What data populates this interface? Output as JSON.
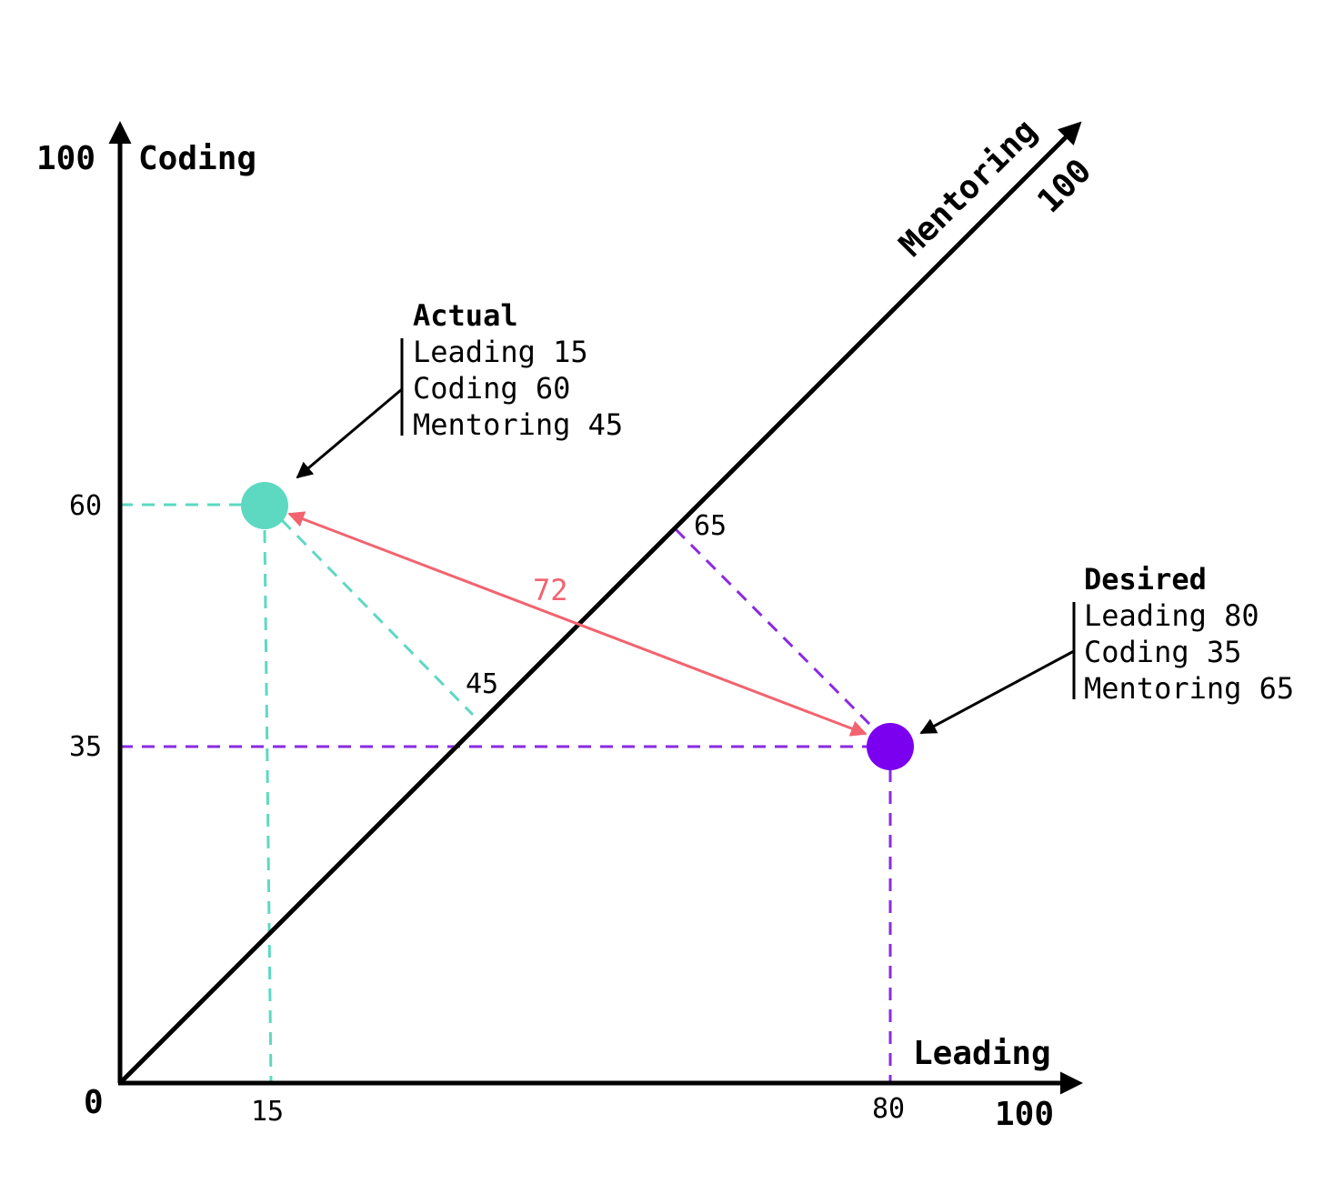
{
  "axes": {
    "origin_label": "0",
    "leading": {
      "title": "Leading",
      "max_label": "100"
    },
    "coding": {
      "title": "Coding",
      "max_label": "100"
    },
    "mentoring": {
      "title": "Mentoring",
      "max_label": "100"
    }
  },
  "points": {
    "actual": {
      "title": "Actual",
      "color": "#5dd9c1",
      "leading": 15,
      "coding": 60,
      "mentoring": 45,
      "lines": [
        "Leading 15",
        "Coding 60",
        "Mentoring 45"
      ],
      "leading_tick": "15",
      "coding_tick": "60",
      "mentoring_label": "45"
    },
    "desired": {
      "title": "Desired",
      "color": "#7b00f0",
      "leading": 80,
      "coding": 35,
      "mentoring": 65,
      "lines": [
        "Leading 80",
        "Coding 35",
        "Mentoring 65"
      ],
      "leading_tick": "80",
      "coding_tick": "35",
      "mentoring_label": "65"
    }
  },
  "distance": {
    "label": "72",
    "color": "#f2636f"
  },
  "colors": {
    "axis": "#000000"
  }
}
